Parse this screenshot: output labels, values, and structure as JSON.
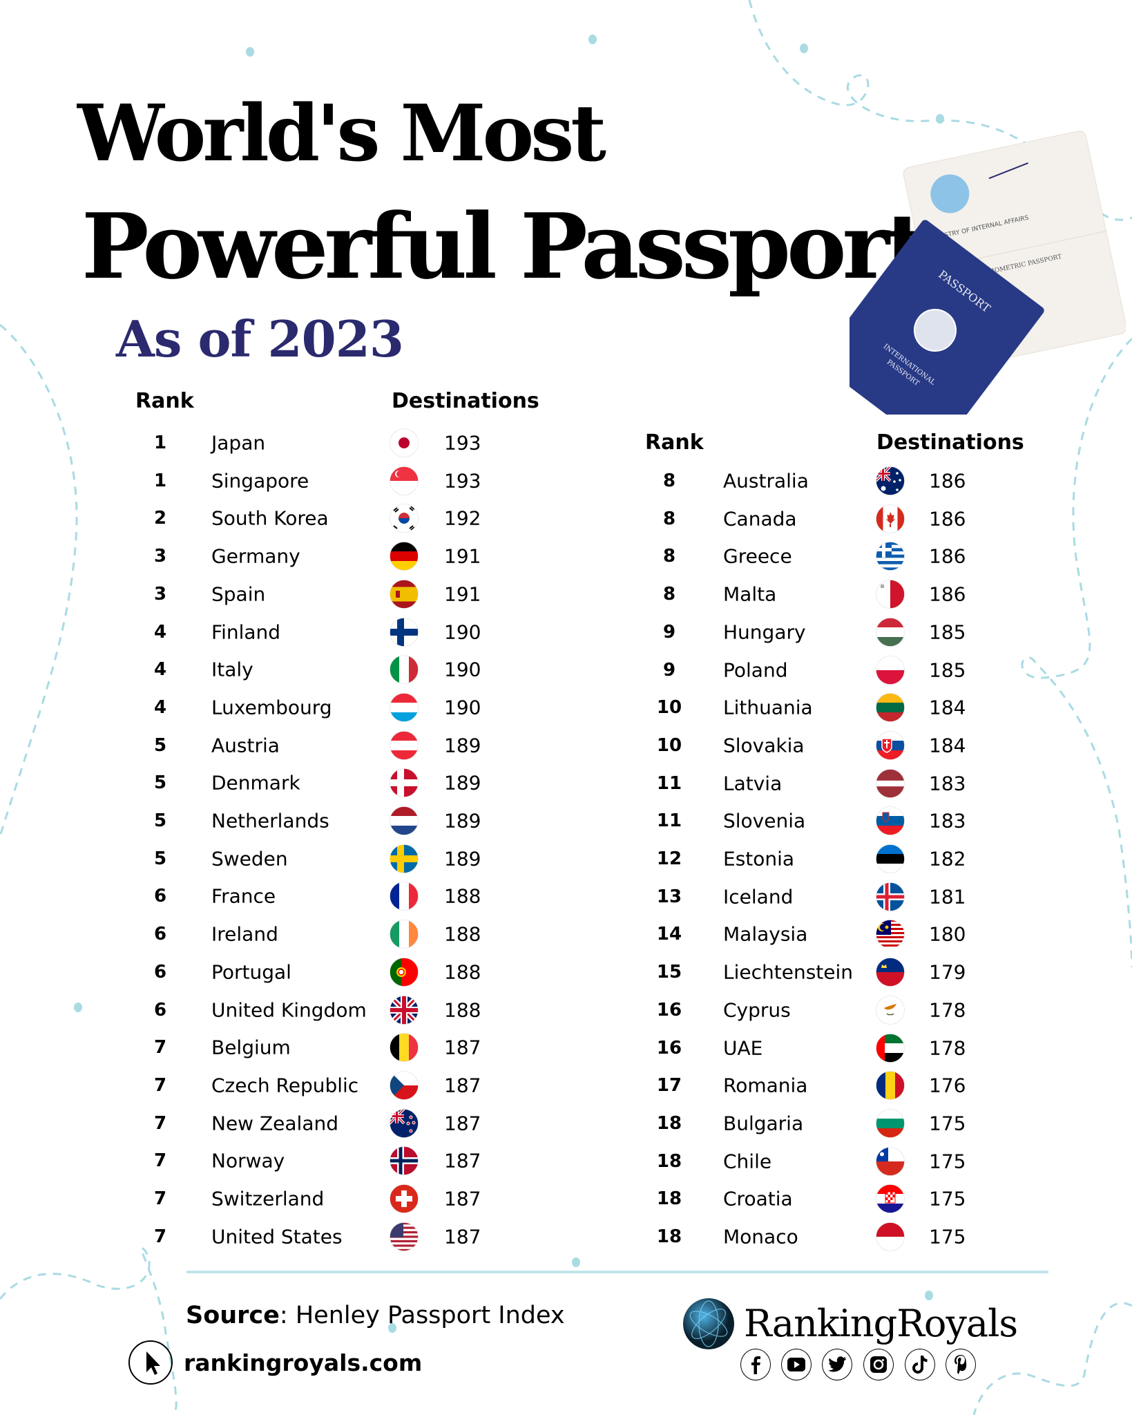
{
  "title": {
    "line1": "World's Most",
    "line2": "Powerful Passports",
    "subtitle": "As of 2023"
  },
  "passport_image": {
    "cover_title": "PASSPORT",
    "cover_subtitle_1": "INTERNATIONAL",
    "cover_subtitle_2": "PASSPORT"
  },
  "left_table": {
    "rank_header": "Rank",
    "destinations_header": "Destinations",
    "rows": [
      {
        "rank": "1",
        "country": "Japan",
        "flag": "jp",
        "destinations": "193"
      },
      {
        "rank": "1",
        "country": "Singapore",
        "flag": "sg",
        "destinations": "193"
      },
      {
        "rank": "2",
        "country": "South Korea",
        "flag": "kr",
        "destinations": "192"
      },
      {
        "rank": "3",
        "country": "Germany",
        "flag": "de",
        "destinations": "191"
      },
      {
        "rank": "3",
        "country": "Spain",
        "flag": "es",
        "destinations": "191"
      },
      {
        "rank": "4",
        "country": "Finland",
        "flag": "fi",
        "destinations": "190"
      },
      {
        "rank": "4",
        "country": "Italy",
        "flag": "it",
        "destinations": "190"
      },
      {
        "rank": "4",
        "country": "Luxembourg",
        "flag": "lu",
        "destinations": "190"
      },
      {
        "rank": "5",
        "country": "Austria",
        "flag": "at",
        "destinations": "189"
      },
      {
        "rank": "5",
        "country": "Denmark",
        "flag": "dk",
        "destinations": "189"
      },
      {
        "rank": "5",
        "country": "Netherlands",
        "flag": "nl",
        "destinations": "189"
      },
      {
        "rank": "5",
        "country": "Sweden",
        "flag": "se",
        "destinations": "189"
      },
      {
        "rank": "6",
        "country": "France",
        "flag": "fr",
        "destinations": "188"
      },
      {
        "rank": "6",
        "country": "Ireland",
        "flag": "ie",
        "destinations": "188"
      },
      {
        "rank": "6",
        "country": "Portugal",
        "flag": "pt",
        "destinations": "188"
      },
      {
        "rank": "6",
        "country": "United Kingdom",
        "flag": "gb",
        "destinations": "188"
      },
      {
        "rank": "7",
        "country": "Belgium",
        "flag": "be",
        "destinations": "187"
      },
      {
        "rank": "7",
        "country": "Czech Republic",
        "flag": "cz",
        "destinations": "187"
      },
      {
        "rank": "7",
        "country": "New Zealand",
        "flag": "nz",
        "destinations": "187"
      },
      {
        "rank": "7",
        "country": "Norway",
        "flag": "no",
        "destinations": "187"
      },
      {
        "rank": "7",
        "country": "Switzerland",
        "flag": "ch",
        "destinations": "187"
      },
      {
        "rank": "7",
        "country": "United States",
        "flag": "us",
        "destinations": "187"
      }
    ]
  },
  "right_table": {
    "rank_header": "Rank",
    "destinations_header": "Destinations",
    "rows": [
      {
        "rank": "8",
        "country": "Australia",
        "flag": "au",
        "destinations": "186"
      },
      {
        "rank": "8",
        "country": "Canada",
        "flag": "ca",
        "destinations": "186"
      },
      {
        "rank": "8",
        "country": "Greece",
        "flag": "gr",
        "destinations": "186"
      },
      {
        "rank": "8",
        "country": "Malta",
        "flag": "mt",
        "destinations": "186"
      },
      {
        "rank": "9",
        "country": "Hungary",
        "flag": "hu",
        "destinations": "185"
      },
      {
        "rank": "9",
        "country": "Poland",
        "flag": "pl",
        "destinations": "185"
      },
      {
        "rank": "10",
        "country": "Lithuania",
        "flag": "lt",
        "destinations": "184"
      },
      {
        "rank": "10",
        "country": "Slovakia",
        "flag": "sk",
        "destinations": "184"
      },
      {
        "rank": "11",
        "country": "Latvia",
        "flag": "lv",
        "destinations": "183"
      },
      {
        "rank": "11",
        "country": "Slovenia",
        "flag": "si",
        "destinations": "183"
      },
      {
        "rank": "12",
        "country": "Estonia",
        "flag": "ee",
        "destinations": "182"
      },
      {
        "rank": "13",
        "country": "Iceland",
        "flag": "is",
        "destinations": "181"
      },
      {
        "rank": "14",
        "country": "Malaysia",
        "flag": "my",
        "destinations": "180"
      },
      {
        "rank": "15",
        "country": "Liechtenstein",
        "flag": "li",
        "destinations": "179"
      },
      {
        "rank": "16",
        "country": "Cyprus",
        "flag": "cy",
        "destinations": "178"
      },
      {
        "rank": "16",
        "country": "UAE",
        "flag": "ae",
        "destinations": "178"
      },
      {
        "rank": "17",
        "country": "Romania",
        "flag": "ro",
        "destinations": "176"
      },
      {
        "rank": "18",
        "country": "Bulgaria",
        "flag": "bg",
        "destinations": "175"
      },
      {
        "rank": "18",
        "country": "Chile",
        "flag": "cl",
        "destinations": "175"
      },
      {
        "rank": "18",
        "country": "Croatia",
        "flag": "hr",
        "destinations": "175"
      },
      {
        "rank": "18",
        "country": "Monaco",
        "flag": "mc",
        "destinations": "175"
      }
    ]
  },
  "footer": {
    "source_label": "Source",
    "source_value": ": Henley Passport Index",
    "website": "rankingroyals.com",
    "brand": "RankingRoyals",
    "social_icons": [
      "facebook-icon",
      "youtube-icon",
      "twitter-icon",
      "instagram-icon",
      "tiktok-icon",
      "pinterest-icon"
    ]
  },
  "colors": {
    "subtitle": "#2b2a6e",
    "decoration": "#a9dbe3",
    "divider": "#bfe4ea",
    "passport_cover": "#283a86"
  }
}
